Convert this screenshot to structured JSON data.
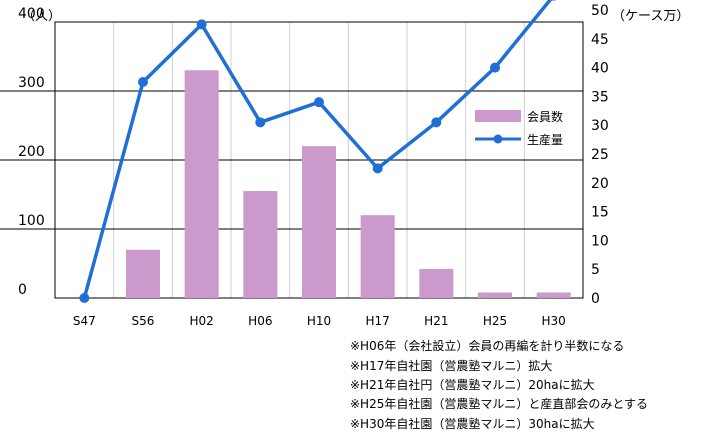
{
  "chart_data": {
    "type": "bar",
    "categories": [
      "S47",
      "S56",
      "H02",
      "H06",
      "H10",
      "H17",
      "H21",
      "H25",
      "H30"
    ],
    "series": [
      {
        "name": "会員数",
        "type": "bar",
        "axis": "left",
        "color": "#cc99cc",
        "values": [
          0,
          70,
          330,
          155,
          220,
          120,
          42,
          8,
          8
        ]
      },
      {
        "name": "生産量",
        "type": "line",
        "axis": "right",
        "color": "#1f6fd6",
        "values": [
          0,
          37.5,
          47.5,
          30.5,
          34,
          22.5,
          30.5,
          40,
          52.5
        ]
      }
    ],
    "y_left": {
      "unit": "（人）",
      "ylim": [
        0,
        400
      ],
      "ticks": [
        0,
        100,
        200,
        300,
        400
      ]
    },
    "y_right": {
      "unit": "（ケース万）",
      "ylim": [
        0,
        50
      ],
      "ticks": [
        0,
        5,
        10,
        15,
        20,
        25,
        30,
        35,
        40,
        45,
        50
      ]
    },
    "grid": true,
    "legend": "right",
    "notes": [
      "※H06年（会社設立）会員の再編を計り半数になる",
      "※H17年自社園（営農塾マルニ）拡大",
      "※H21年自社円（営農塾マルニ）20haに拡大",
      "※H25年自社園（営農塾マルニ）と産直部会のみとする",
      "※H30年自社園（営農塾マルニ）30haに拡大"
    ]
  }
}
